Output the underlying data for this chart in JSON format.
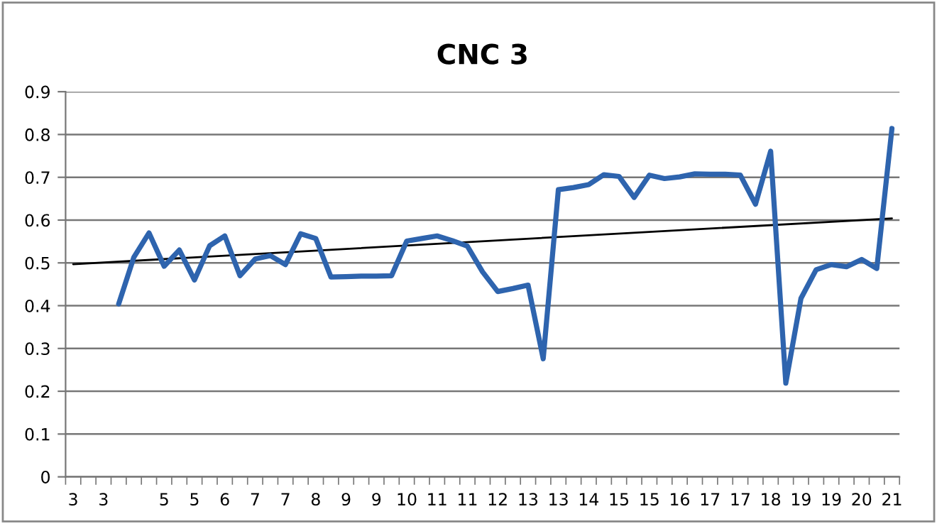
{
  "chart_data": {
    "type": "line",
    "title": "CNC 3",
    "categories": [
      "3",
      null,
      "3",
      null,
      null,
      null,
      "5",
      null,
      "5",
      null,
      "6",
      null,
      "7",
      null,
      "7",
      null,
      "8",
      null,
      "9",
      null,
      "9",
      null,
      "10",
      null,
      "11",
      null,
      "11",
      null,
      "12",
      null,
      "13",
      null,
      "13",
      null,
      "14",
      null,
      "15",
      null,
      "15",
      null,
      "16",
      null,
      "17",
      null,
      "17",
      null,
      "18",
      null,
      "19",
      null,
      "19",
      null,
      "20",
      null,
      "21"
    ],
    "series": [
      {
        "color": "#2e64ae",
        "values": [
          null,
          null,
          null,
          0.404,
          0.513,
          0.57,
          0.492,
          0.53,
          0.46,
          0.54,
          0.563,
          0.47,
          0.509,
          0.517,
          0.496,
          0.568,
          0.557,
          0.467,
          0.468,
          0.469,
          0.469,
          0.47,
          0.551,
          0.557,
          0.563,
          0.552,
          0.539,
          0.479,
          0.433,
          0.44,
          0.448,
          0.276,
          0.671,
          0.676,
          0.683,
          0.706,
          0.702,
          0.653,
          0.705,
          0.697,
          0.701,
          0.708,
          0.707,
          0.707,
          0.705,
          0.637,
          0.761,
          0.219,
          0.417,
          0.484,
          0.496,
          0.491,
          0.508,
          0.487,
          0.814
        ]
      },
      {
        "color": "#000000",
        "values": [
          0.497,
          null,
          null,
          null,
          null,
          null,
          null,
          null,
          null,
          null,
          null,
          null,
          null,
          null,
          null,
          null,
          null,
          null,
          null,
          null,
          null,
          null,
          null,
          null,
          null,
          null,
          null,
          null,
          null,
          null,
          null,
          null,
          null,
          null,
          null,
          null,
          null,
          null,
          null,
          null,
          null,
          null,
          null,
          null,
          null,
          null,
          null,
          null,
          null,
          null,
          null,
          null,
          null,
          null,
          0.604
        ]
      }
    ],
    "ylim": [
      0,
      0.9
    ],
    "yticks": [
      0,
      0.1,
      0.2,
      0.3,
      0.4,
      0.5,
      0.6,
      0.7,
      0.8,
      0.9
    ],
    "grid": "y",
    "legend": false,
    "marker": "none"
  }
}
